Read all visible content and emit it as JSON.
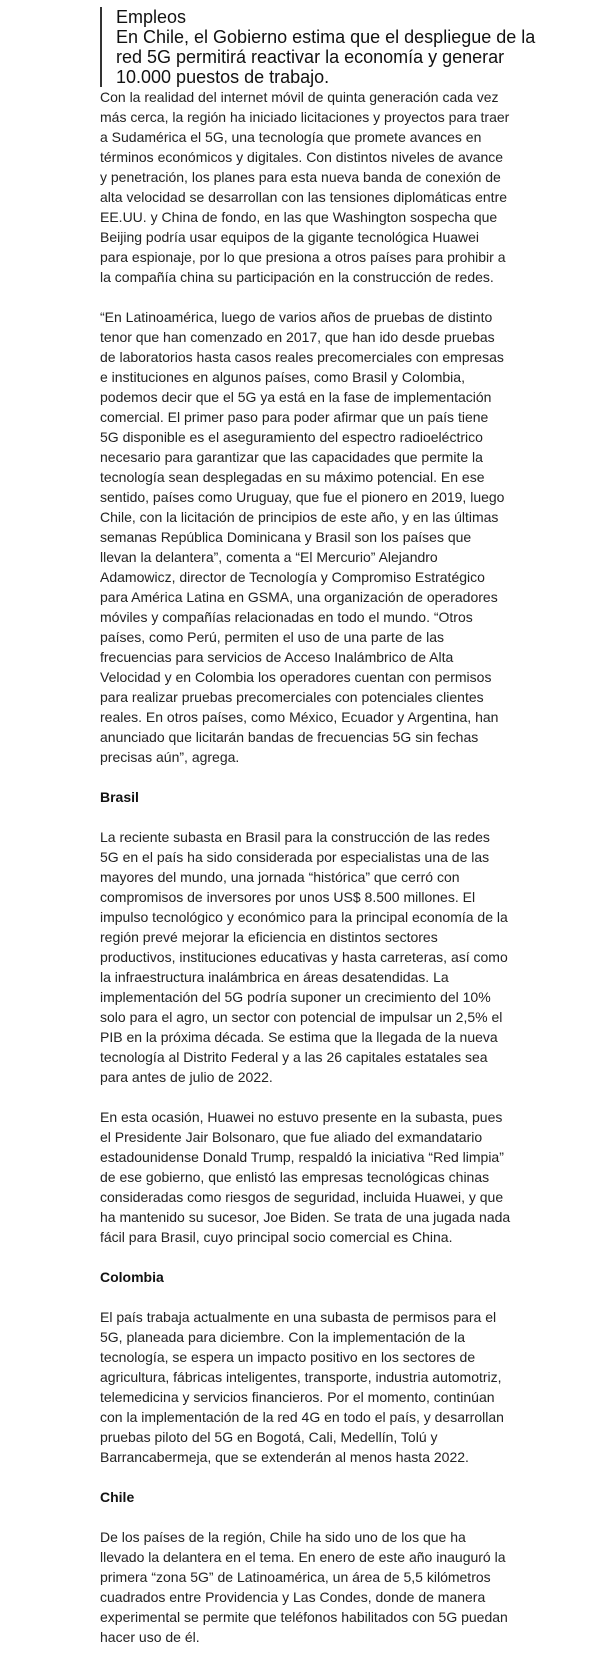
{
  "quote": {
    "lines": [
      "Empleos",
      "En Chile, el Gobierno estima que el despliegue de la",
      "red 5G permitirá reactivar la economía y generar",
      "10.000 puestos de trabajo."
    ]
  },
  "article": {
    "blocks": [
      {
        "type": "p",
        "lines": [
          "Con la realidad del internet móvil de quinta generación cada vez",
          "más cerca, la región ha iniciado licitaciones y proyectos para traer",
          "a Sudamérica el 5G, una tecnología que promete avances en",
          "términos económicos y digitales. Con distintos niveles de avance",
          "y penetración, los planes para esta nueva banda de conexión de",
          "alta velocidad se desarrollan con las tensiones diplomáticas entre",
          "EE.UU. y China de fondo, en las que Washington sospecha que",
          "Beijing podría usar equipos de la gigante tecnológica Huawei",
          "para espionaje, por lo que presiona a otros países para prohibir a",
          "la compañía china su participación en la construcción de redes."
        ]
      },
      {
        "type": "p",
        "lines": [
          "“En Latinoamérica, luego de varios años de pruebas de distinto",
          "tenor que han comenzado en 2017, que han ido desde pruebas",
          "de laboratorios hasta casos reales precomerciales con empresas",
          "e instituciones en algunos países, como Brasil y Colombia,",
          "podemos decir que el 5G ya está en la fase de implementación",
          "comercial. El primer paso para poder afirmar que un país tiene",
          "5G disponible es el aseguramiento del espectro radioeléctrico",
          "necesario para garantizar que las capacidades que permite la",
          "tecnología sean desplegadas en su máximo potencial. En ese",
          "sentido, países como Uruguay, que fue el pionero en 2019, luego",
          "Chile, con la licitación de principios de este año, y en las últimas",
          "semanas República Dominicana y Brasil son los países que",
          "llevan la delantera”, comenta a “El Mercurio” Alejandro",
          "Adamowicz, director de Tecnología y Compromiso Estratégico",
          "para América Latina en GSMA, una organización de operadores",
          "móviles y compañías relacionadas en todo el mundo. “Otros",
          "países, como Perú, permiten el uso de una parte de las",
          "frecuencias para servicios de Acceso Inalámbrico de Alta",
          "Velocidad y en Colombia los operadores cuentan con permisos",
          "para realizar pruebas precomerciales con potenciales clientes",
          "reales. En otros países, como México, Ecuador y Argentina, han",
          "anunciado que licitarán bandas de frecuencias 5G sin fechas",
          "precisas aún”, agrega."
        ]
      },
      {
        "type": "h",
        "lines": [
          "Brasil"
        ]
      },
      {
        "type": "p",
        "lines": [
          "La reciente subasta en Brasil para la construcción de las redes",
          "5G en el país ha sido considerada por especialistas una de las",
          "mayores del mundo, una jornada “histórica” que cerró con",
          "compromisos de inversores por unos US$ 8.500 millones. El",
          "impulso tecnológico y económico para la principal economía de la",
          "región prevé mejorar la eficiencia en distintos sectores",
          "productivos, instituciones educativas y hasta carreteras, así como",
          "la infraestructura inalámbrica en áreas desatendidas. La",
          "implementación del 5G podría suponer un crecimiento del 10%",
          "solo para el agro, un sector con potencial de impulsar un 2,5% el",
          "PIB en la próxima década. Se estima que la llegada de la nueva",
          "tecnología al Distrito Federal y a las 26 capitales estatales sea",
          "para antes de julio de 2022."
        ]
      },
      {
        "type": "p",
        "lines": [
          "En esta ocasión, Huawei no estuvo presente en la subasta, pues",
          "el Presidente Jair Bolsonaro, que fue aliado del exmandatario",
          "estadounidense Donald Trump, respaldó la iniciativa “Red limpia”",
          "de ese gobierno, que enlistó las empresas tecnológicas chinas",
          "consideradas como riesgos de seguridad, incluida Huawei, y que",
          "ha mantenido su sucesor, Joe Biden. Se trata de una jugada nada",
          "fácil para Brasil, cuyo principal socio comercial es China."
        ]
      },
      {
        "type": "h",
        "lines": [
          "Colombia"
        ]
      },
      {
        "type": "p",
        "lines": [
          "El país trabaja actualmente en una subasta de permisos para el",
          "5G, planeada para diciembre. Con la implementación de la",
          "tecnología, se espera un impacto positivo en los sectores de",
          "agricultura, fábricas inteligentes, transporte, industria automotriz,",
          "telemedicina y servicios financieros. Por el momento, continúan",
          "con la implementación de la red 4G en todo el país, y desarrollan",
          "pruebas piloto del 5G en Bogotá, Cali, Medellín, Tolú y",
          "Barrancabermeja, que se extenderán al menos hasta 2022."
        ]
      },
      {
        "type": "h",
        "lines": [
          "Chile"
        ]
      },
      {
        "type": "p",
        "lines": [
          "De los países de la región, Chile ha sido uno de los que ha",
          "llevado la delantera en el tema. En enero de este año inauguró la",
          "primera “zona 5G” de Latinoamérica, un área de 5,5 kilómetros",
          "cuadrados entre Providencia y Las Condes, donde de manera",
          "experimental se permite que teléfonos habilitados con 5G puedan",
          "hacer uso de él."
        ]
      }
    ]
  }
}
